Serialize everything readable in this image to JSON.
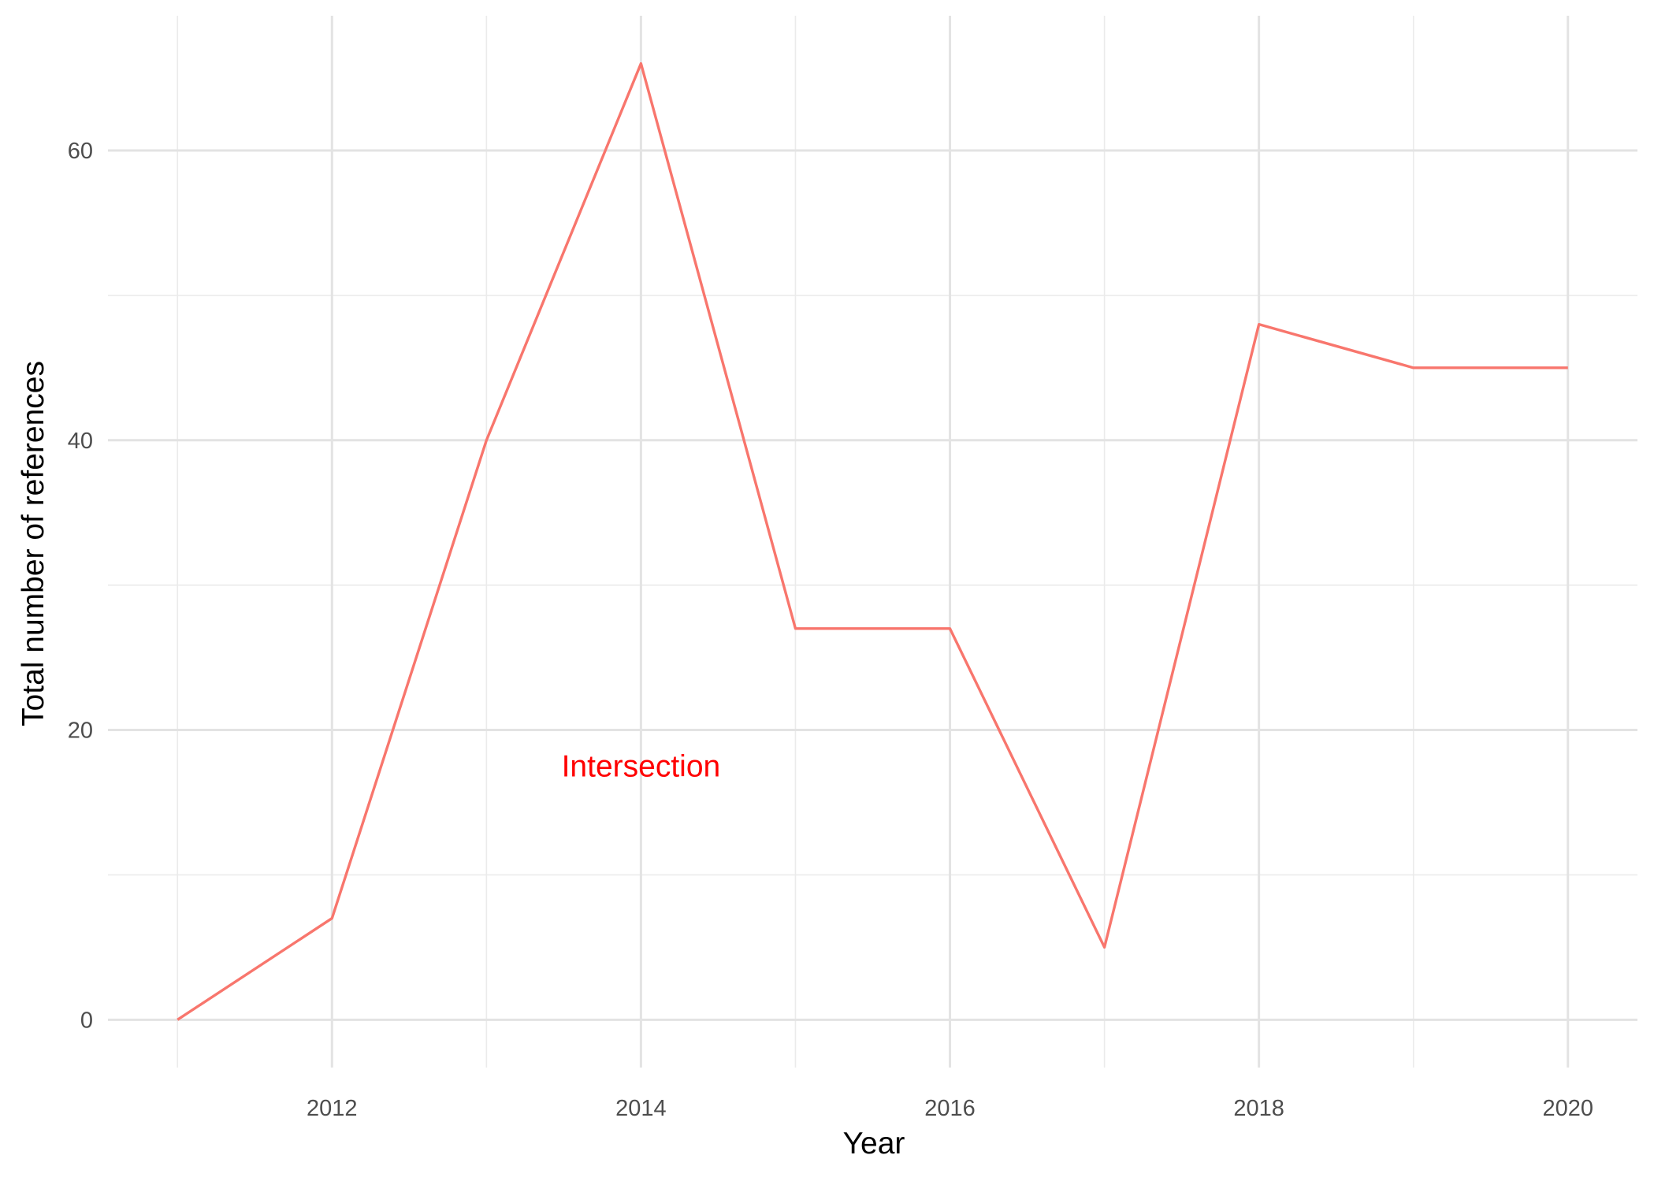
{
  "chart_data": {
    "type": "line",
    "title": "",
    "xlabel": "Year",
    "ylabel": "Total number of references",
    "x": [
      2011,
      2012,
      2013,
      2014,
      2015,
      2016,
      2017,
      2018,
      2019,
      2020
    ],
    "series": [
      {
        "values": [
          0,
          7,
          40,
          66,
          27,
          27,
          5,
          48,
          45,
          45
        ],
        "color": "#F8766D"
      }
    ],
    "xlim": [
      2010.55,
      2020.45
    ],
    "ylim": [
      -3.3,
      69.3
    ],
    "x_ticks": [
      2012,
      2014,
      2016,
      2018,
      2020
    ],
    "x_tick_labels": [
      "2012",
      "2014",
      "2016",
      "2018",
      "2020"
    ],
    "y_ticks": [
      0,
      20,
      40,
      60
    ],
    "y_tick_labels": [
      "0",
      "20",
      "40",
      "60"
    ],
    "x_minor_ticks": [
      2011,
      2013,
      2015,
      2017,
      2019
    ],
    "y_minor_ticks": [
      10,
      30,
      50
    ],
    "grid": true,
    "legend": "none",
    "annotations": [
      {
        "text": "Intersection",
        "x": 2014,
        "y": 17.5,
        "color": "#FF0000"
      }
    ]
  }
}
